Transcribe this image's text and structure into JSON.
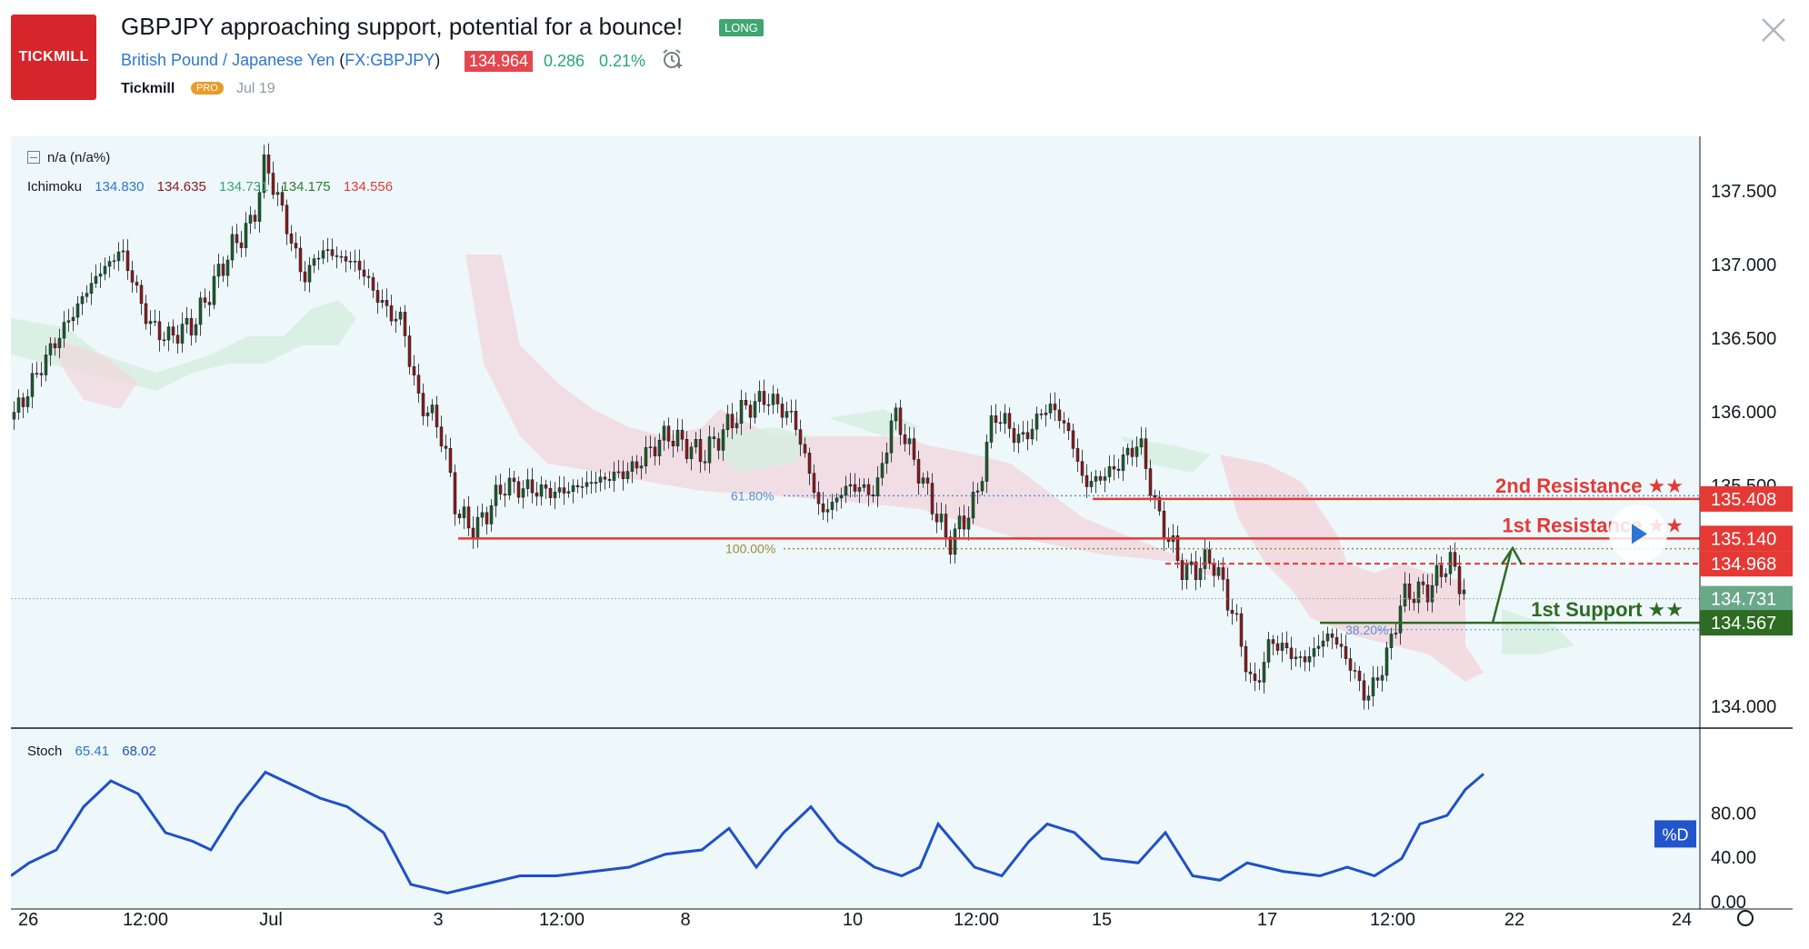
{
  "header": {
    "logo_text": "TICKMILL",
    "title": "GBPJPY approaching support, potential for a bounce!",
    "tag": "LONG",
    "symbol_name": "British Pound / Japanese Yen",
    "symbol_code": "FX:GBPJPY",
    "price": "134.964",
    "change": "0.286",
    "change_pct": "0.21%",
    "author": "Tickmill",
    "author_badge": "PRO",
    "date": "Jul 19"
  },
  "legend": {
    "main": "n/a (n/a%)",
    "ichimoku_label": "Ichimoku",
    "ichimoku_values": [
      {
        "v": "134.830",
        "color": "#2b76d3"
      },
      {
        "v": "134.635",
        "color": "#8b1a1a"
      },
      {
        "v": "134.731",
        "color": "#3fa66f"
      },
      {
        "v": "134.175",
        "color": "#2e7d32"
      },
      {
        "v": "134.556",
        "color": "#e53935"
      }
    ],
    "stoch_label": "Stoch",
    "stoch_k": "65.41",
    "stoch_d": "68.02"
  },
  "price_axis": [
    "137.500",
    "137.000",
    "136.500",
    "136.000",
    "135.500",
    "134.000"
  ],
  "stoch_axis": [
    "80.00",
    "40.00",
    "0.00"
  ],
  "time_axis": [
    "26",
    "12:00",
    "Jul",
    "3",
    "12:00",
    "8",
    "10",
    "12:00",
    "15",
    "17",
    "12:00",
    "22",
    "24"
  ],
  "levels": {
    "res2": {
      "label": "2nd Resistance ★★",
      "price": "135.408",
      "color": "#e53935"
    },
    "res1": {
      "label": "1st Resistance ★★",
      "price": "135.140",
      "color": "#e53935"
    },
    "res1_dashed": {
      "price": "134.968",
      "color": "#e53935"
    },
    "current": {
      "price": "134.731",
      "color": "#6aa88a"
    },
    "sup1": {
      "label": "1st Support ★★",
      "price": "134.567",
      "color": "#2e6b23"
    }
  },
  "fib": {
    "f618": "61.80%",
    "f100": "100.00%",
    "f382": "38.20%"
  },
  "stoch_tag": "%D",
  "colors": {
    "chart_bg": "#eef8fb",
    "red": "#e53935",
    "green": "#2e6b23",
    "stoch_line": "#1e50c8"
  }
}
